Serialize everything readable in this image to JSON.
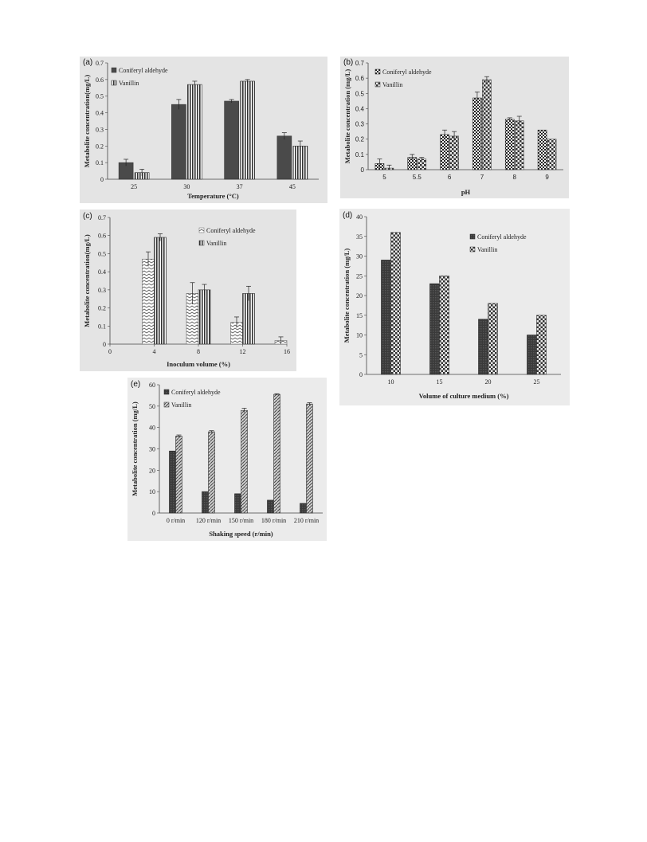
{
  "chart_data": [
    {
      "id": "a",
      "type": "bar",
      "panel_label": "(a)",
      "categories": [
        "25",
        "30",
        "37",
        "45"
      ],
      "series": [
        {
          "name": "Coniferyl aldehyde",
          "values": [
            0.1,
            0.45,
            0.47,
            0.26
          ],
          "errors": [
            0.02,
            0.03,
            0.01,
            0.02
          ]
        },
        {
          "name": "Vanillin",
          "values": [
            0.04,
            0.57,
            0.59,
            0.2
          ],
          "errors": [
            0.02,
            0.02,
            0.01,
            0.03
          ]
        }
      ],
      "xlabel": "Temperature (°C)",
      "ylabel": "Metabolite concentration(mg/L)",
      "ylim": [
        0,
        0.7
      ],
      "yticks": [
        "0",
        "0.1",
        "0.2",
        "0.3",
        "0.4",
        "0.5",
        "0.6",
        "0.7"
      ],
      "legend_position": "top-left",
      "grid": false
    },
    {
      "id": "b",
      "type": "bar",
      "panel_label": "(b)",
      "categories": [
        "5",
        "5.5",
        "6",
        "7",
        "8",
        "9"
      ],
      "series": [
        {
          "name": "Coniferyl aldehyde",
          "values": [
            0.04,
            0.08,
            0.23,
            0.47,
            0.33,
            0.26
          ],
          "errors": [
            0.03,
            0.02,
            0.03,
            0.04,
            0.01,
            0.0
          ]
        },
        {
          "name": "Vanillin",
          "values": [
            0.01,
            0.07,
            0.22,
            0.59,
            0.32,
            0.2
          ],
          "errors": [
            0.02,
            0.01,
            0.03,
            0.02,
            0.03,
            0.0
          ]
        }
      ],
      "xlabel": "pH",
      "ylabel": "Metabolite concentration (mg/L)",
      "ylim": [
        0,
        0.7
      ],
      "yticks": [
        "0",
        "0.1",
        "0.2",
        "0.3",
        "0.4",
        "0.5",
        "0.6",
        "0.7"
      ],
      "legend_position": "top-left",
      "grid": false
    },
    {
      "id": "c",
      "type": "bar",
      "panel_label": "(c)",
      "x_ticks": [
        "0",
        "4",
        "8",
        "12",
        "16"
      ],
      "x": [
        4,
        8,
        12,
        16
      ],
      "series": [
        {
          "name": "Coniferyl aldehyde",
          "values": [
            0.47,
            0.28,
            0.12,
            0.02
          ],
          "errors": [
            0.04,
            0.06,
            0.03,
            0.02
          ]
        },
        {
          "name": "Vanillin",
          "values": [
            0.59,
            0.3,
            0.28,
            null
          ],
          "errors": [
            0.02,
            0.03,
            0.04,
            null
          ]
        }
      ],
      "xlabel": "Inoculum volume (%)",
      "ylabel": "Metabolite concentration(mg/L)",
      "ylim": [
        0,
        0.7
      ],
      "xlim": [
        0,
        16
      ],
      "yticks": [
        "0",
        "0.1",
        "0.2",
        "0.3",
        "0.4",
        "0.5",
        "0.6",
        "0.7"
      ],
      "legend_position": "top-right",
      "grid": false
    },
    {
      "id": "d",
      "type": "bar",
      "panel_label": "(d)",
      "categories": [
        "10",
        "15",
        "20",
        "25"
      ],
      "series": [
        {
          "name": "Coniferyl aldehyde",
          "values": [
            29,
            23,
            14,
            10
          ]
        },
        {
          "name": "Vanillin",
          "values": [
            36,
            25,
            18,
            15
          ]
        }
      ],
      "xlabel": "Volume of culture medium (%)",
      "ylabel": "Metabolite concentration (mg/L)",
      "ylim": [
        0,
        40
      ],
      "yticks": [
        "0",
        "5",
        "10",
        "15",
        "20",
        "25",
        "30",
        "35",
        "40"
      ],
      "legend_position": "top-right",
      "grid": false
    },
    {
      "id": "e",
      "type": "bar",
      "panel_label": "(e)",
      "categories": [
        "0 r/min",
        "120 r/min",
        "150 r/min",
        "180 r/min",
        "210 r/min"
      ],
      "series": [
        {
          "name": "Coniferyl aldehyde",
          "values": [
            29,
            10,
            9,
            6,
            4.5
          ]
        },
        {
          "name": "Vanillin",
          "values": [
            36,
            38,
            48,
            55.5,
            51
          ],
          "errors": [
            0.5,
            0.5,
            1,
            0.3,
            0.6
          ]
        }
      ],
      "xlabel": "Shaking speed (r/min)",
      "ylabel": "Metabolite concentration (mg/L)",
      "ylim": [
        0,
        60
      ],
      "yticks": [
        "0",
        "10",
        "20",
        "30",
        "40",
        "50",
        "60"
      ],
      "legend_position": "top-left",
      "grid": false
    }
  ]
}
